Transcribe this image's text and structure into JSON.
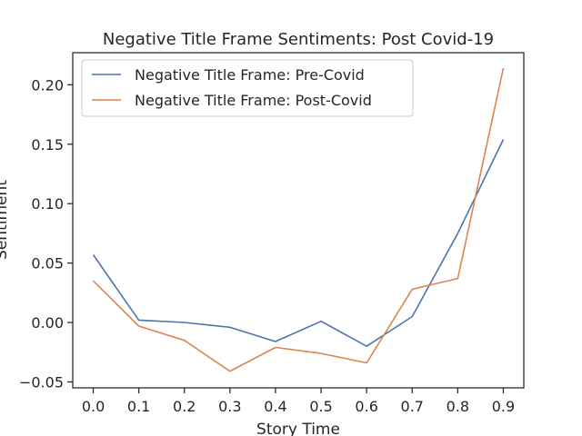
{
  "chart_data": {
    "type": "line",
    "title": "Negative Title Frame Sentiments: Post Covid-19",
    "xlabel": "Story Time",
    "ylabel": "Sentiment",
    "x": [
      0.0,
      0.1,
      0.2,
      0.3,
      0.4,
      0.5,
      0.6,
      0.7,
      0.8,
      0.9
    ],
    "x_ticks": [
      "0.0",
      "0.1",
      "0.2",
      "0.3",
      "0.4",
      "0.5",
      "0.6",
      "0.7",
      "0.8",
      "0.9"
    ],
    "y_ticks": [
      "−0.05",
      "0.00",
      "0.05",
      "0.10",
      "0.15",
      "0.20"
    ],
    "y_tick_values": [
      -0.05,
      0.0,
      0.05,
      0.1,
      0.15,
      0.2
    ],
    "xlim": [
      -0.045,
      0.945
    ],
    "ylim": [
      -0.055,
      0.227
    ],
    "grid": false,
    "legend_position": "top-left",
    "series": [
      {
        "name": "Negative Title Frame: Pre-Covid",
        "color": "#4c72b0",
        "values": [
          0.057,
          0.002,
          0.0,
          -0.004,
          -0.016,
          0.001,
          -0.02,
          0.005,
          0.075,
          0.154
        ]
      },
      {
        "name": "Negative Title Frame: Post-Covid",
        "color": "#dd8452",
        "values": [
          0.035,
          -0.003,
          -0.015,
          -0.041,
          -0.021,
          -0.026,
          -0.034,
          0.028,
          0.037,
          0.214
        ]
      }
    ]
  }
}
